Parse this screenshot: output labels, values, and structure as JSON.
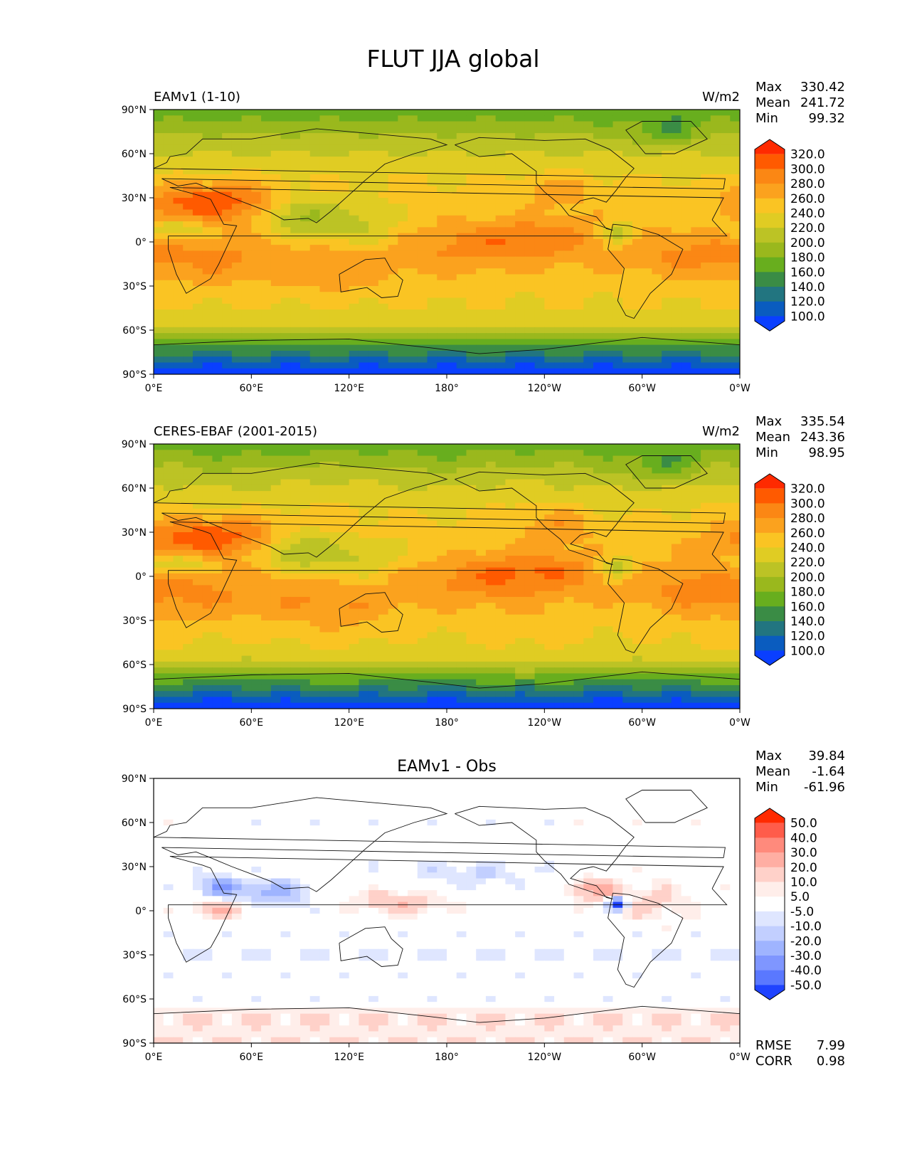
{
  "figure_title": "FLUT JJA global",
  "axis_ticks": {
    "lon": [
      "0°E",
      "60°E",
      "120°E",
      "180°",
      "120°W",
      "60°W",
      "0°W"
    ],
    "lat": [
      "90°N",
      "60°N",
      "30°N",
      "0°",
      "30°S",
      "60°S",
      "90°S"
    ]
  },
  "stat_labels": {
    "max": "Max",
    "mean": "Mean",
    "min": "Min",
    "rmse": "RMSE",
    "corr": "CORR"
  },
  "chart_data": [
    {
      "type": "heatmap",
      "title": "EAMv1 (1-10)",
      "units": "W/m2",
      "variable": "FLUT",
      "season": "JJA",
      "lon_range": [
        0,
        360
      ],
      "lat_range": [
        -90,
        90
      ],
      "stats": {
        "max": "330.42",
        "mean": "241.72",
        "min": "99.32"
      },
      "colorbar": {
        "levels": [
          "320.0",
          "300.0",
          "280.0",
          "260.0",
          "240.0",
          "220.0",
          "200.0",
          "180.0",
          "160.0",
          "140.0",
          "120.0",
          "100.0"
        ],
        "colors": [
          "#ff2a00",
          "#ff5a00",
          "#fb8714",
          "#fba21e",
          "#fac423",
          "#e0cc23",
          "#bcc325",
          "#9ab81d",
          "#68ae1e",
          "#3a8c45",
          "#227580",
          "#0a5cbf",
          "#0a3fff"
        ],
        "extend": "both"
      }
    },
    {
      "type": "heatmap",
      "title": "CERES-EBAF (2001-2015)",
      "units": "W/m2",
      "variable": "FLUT",
      "season": "JJA",
      "lon_range": [
        0,
        360
      ],
      "lat_range": [
        -90,
        90
      ],
      "stats": {
        "max": "335.54",
        "mean": "243.36",
        "min": "98.95"
      },
      "colorbar": {
        "levels": [
          "320.0",
          "300.0",
          "280.0",
          "260.0",
          "240.0",
          "220.0",
          "200.0",
          "180.0",
          "160.0",
          "140.0",
          "120.0",
          "100.0"
        ],
        "colors": [
          "#ff2a00",
          "#ff5a00",
          "#fb8714",
          "#fba21e",
          "#fac423",
          "#e0cc23",
          "#bcc325",
          "#9ab81d",
          "#68ae1e",
          "#3a8c45",
          "#227580",
          "#0a5cbf",
          "#0a3fff"
        ],
        "extend": "both"
      }
    },
    {
      "type": "heatmap",
      "title": "EAMv1 - Obs",
      "units": "",
      "variable": "FLUT",
      "season": "JJA",
      "lon_range": [
        0,
        360
      ],
      "lat_range": [
        -90,
        90
      ],
      "stats": {
        "max": "39.84",
        "mean": "-1.64",
        "min": "-61.96"
      },
      "metrics": {
        "rmse": "7.99",
        "corr": "0.98"
      },
      "colorbar": {
        "levels": [
          "50.0",
          "40.0",
          "30.0",
          "20.0",
          "10.0",
          "5.0",
          "-5.0",
          "-10.0",
          "-20.0",
          "-30.0",
          "-40.0",
          "-50.0"
        ],
        "colors": [
          "#ff2a00",
          "#ff5c4a",
          "#ff8a7c",
          "#ffaea3",
          "#ffd1c9",
          "#ffeeea",
          "#ffffff",
          "#dfe6ff",
          "#c2cfff",
          "#9fb4ff",
          "#7f96ff",
          "#5a78ff",
          "#1f43ff"
        ],
        "extend": "both"
      }
    }
  ]
}
